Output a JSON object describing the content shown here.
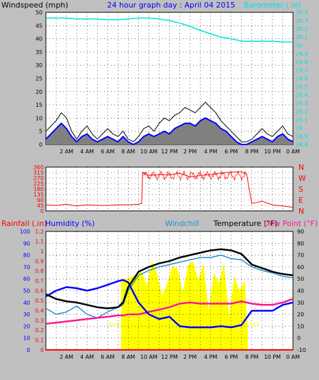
{
  "colors": {
    "bg": "#c0c0c0",
    "plot_bg": "#ffffff",
    "grid": "#000000",
    "wind_gust": "#000000",
    "wind_avg": "#0000ff",
    "wind_fill": "#808080",
    "barometer": "#00e0e0",
    "direction": "#ff0000",
    "humidity": "#0000ff",
    "windchill": "#2090d0",
    "temperature": "#000000",
    "dewpoint": "#ff1493",
    "rainfall": "#ff0000",
    "solar": "#ffff00",
    "sun_label": "#ffff00"
  },
  "chart_data": [
    {
      "type": "line",
      "title": "24 hour graph day : April 04 2015",
      "left_label": "Windspeed (mph)",
      "right_label": "Barometer (.in)",
      "x_ticks": [
        "2 AM",
        "4 AM",
        "6 AM",
        "8 AM",
        "10 AM",
        "12 PM",
        "2 PM",
        "4 PM",
        "6 PM",
        "8 PM",
        "10 PM",
        "0 AM"
      ],
      "x_range_hours": [
        0,
        24
      ],
      "grid": true,
      "y_left": {
        "range": [
          0,
          50
        ],
        "ticks": [
          "0",
          "5",
          "10",
          "15",
          "20",
          "25",
          "30",
          "35",
          "40",
          "45",
          "50"
        ]
      },
      "y_right": {
        "range": [
          28.8,
          30.4
        ],
        "ticks": [
          "28.8",
          "28.9",
          "29",
          "29.1",
          "29.2",
          "29.3",
          "29.4",
          "29.5",
          "29.6",
          "29.7",
          "29.8",
          "29.9",
          "30",
          "30.1",
          "30.2",
          "30.3",
          "30.4"
        ]
      },
      "series": [
        {
          "name": "Barometer",
          "axis": "right",
          "x": [
            0,
            1,
            2,
            3,
            4,
            5,
            6,
            7,
            8,
            9,
            10,
            11,
            12,
            13,
            14,
            15,
            16,
            17,
            18,
            19,
            20,
            21,
            22,
            23,
            24
          ],
          "y": [
            30.33,
            30.33,
            30.33,
            30.32,
            30.32,
            30.32,
            30.31,
            30.31,
            30.32,
            30.33,
            30.33,
            30.32,
            30.3,
            30.27,
            30.23,
            30.18,
            30.14,
            30.1,
            30.08,
            30.05,
            30.05,
            30.05,
            30.05,
            30.04,
            30.04
          ]
        },
        {
          "name": "Wind gust",
          "axis": "left",
          "x": [
            0,
            0.5,
            1,
            1.5,
            2,
            2.5,
            3,
            3.5,
            4,
            4.5,
            5,
            5.5,
            6,
            6.5,
            7,
            7.5,
            8,
            8.5,
            9,
            9.5,
            10,
            10.5,
            11,
            11.5,
            12,
            12.5,
            13,
            13.5,
            14,
            14.5,
            15,
            15.5,
            16,
            16.5,
            17,
            17.5,
            18,
            18.5,
            19,
            19.5,
            20,
            20.5,
            21,
            21.5,
            22,
            22.5,
            23,
            23.5,
            24
          ],
          "y": [
            5,
            7,
            9,
            12,
            10,
            5,
            2,
            5,
            7,
            4,
            2,
            4,
            6,
            4,
            3,
            5,
            2,
            1,
            3,
            6,
            7,
            5,
            8,
            10,
            9,
            11,
            12,
            14,
            13,
            12,
            14,
            16,
            14,
            12,
            9,
            7,
            5,
            3,
            1,
            1,
            2,
            4,
            6,
            4,
            3,
            5,
            7,
            4,
            3
          ]
        },
        {
          "name": "Wind average",
          "axis": "left",
          "x": [
            0,
            0.5,
            1,
            1.5,
            2,
            2.5,
            3,
            3.5,
            4,
            4.5,
            5,
            5.5,
            6,
            6.5,
            7,
            7.5,
            8,
            8.5,
            9,
            9.5,
            10,
            10.5,
            11,
            11.5,
            12,
            12.5,
            13,
            13.5,
            14,
            14.5,
            15,
            15.5,
            16,
            16.5,
            17,
            17.5,
            18,
            18.5,
            19,
            19.5,
            20,
            20.5,
            21,
            21.5,
            22,
            22.5,
            23,
            23.5,
            24
          ],
          "y": [
            2,
            4,
            6,
            8,
            6,
            3,
            1,
            3,
            4,
            2,
            1,
            2,
            3,
            2,
            1,
            3,
            1,
            0,
            1,
            3,
            4,
            3,
            4,
            5,
            4,
            6,
            7,
            8,
            8,
            7,
            9,
            10,
            9,
            8,
            6,
            5,
            3,
            1,
            0,
            0,
            1,
            2,
            3,
            2,
            1,
            3,
            4,
            2,
            1
          ]
        }
      ]
    },
    {
      "type": "line",
      "y_left": {
        "range": [
          0,
          360
        ],
        "ticks": [
          "0",
          "45",
          "90",
          "135",
          "180",
          "225",
          "270",
          "315",
          "360"
        ]
      },
      "right_labels": [
        "N",
        "W",
        "S",
        "E",
        "N"
      ],
      "x_range_hours": [
        0,
        24
      ],
      "grid": true,
      "series": [
        {
          "name": "Wind direction",
          "x": [
            0,
            1,
            2,
            3,
            4,
            5,
            6,
            7,
            8,
            9,
            9.3,
            9.4,
            9.6,
            10,
            11,
            12,
            13,
            14,
            15,
            16,
            17,
            18,
            19,
            19.5,
            20,
            21,
            22,
            23,
            24
          ],
          "y": [
            50,
            45,
            55,
            40,
            50,
            45,
            45,
            50,
            50,
            55,
            60,
            320,
            300,
            290,
            300,
            295,
            310,
            280,
            290,
            300,
            310,
            320,
            320,
            300,
            60,
            80,
            50,
            40,
            30
          ]
        }
      ]
    },
    {
      "type": "line",
      "labels": {
        "rainfall": "Rainfall (.in)",
        "humidity": "Humidity (%)",
        "windchill": "Windchill",
        "temperature": "Temperature (°F)",
        "dewpoint": "Dew Point (°F)"
      },
      "sun_labels": {
        "rise": "Sun",
        "set": "Set"
      },
      "sun_hours": {
        "rise": 7.3,
        "set": 19.6
      },
      "x_ticks": [
        "2 AM",
        "4 AM",
        "6 AM",
        "8 AM",
        "10 AM",
        "12 PM",
        "2 PM",
        "4 PM",
        "6 PM",
        "8 PM",
        "10 PM",
        "0 AM"
      ],
      "x_range_hours": [
        0,
        24
      ],
      "grid": true,
      "y_humidity": {
        "range": [
          0,
          100
        ],
        "ticks": [
          "0",
          "10",
          "20",
          "30",
          "40",
          "50",
          "60",
          "70",
          "80",
          "90",
          "100"
        ]
      },
      "y_rain": {
        "range": [
          0,
          1.2
        ],
        "ticks": [
          "0",
          "0.1",
          "0.2",
          "0.3",
          "0.4",
          "0.5",
          "0.6",
          "0.7",
          "0.8",
          "0.9",
          "1",
          "1.1",
          "1.2"
        ]
      },
      "y_temp": {
        "range": [
          -10,
          90
        ],
        "ticks": [
          "-10",
          "0",
          "10",
          "20",
          "30",
          "40",
          "50",
          "60",
          "70",
          "80",
          "90"
        ]
      },
      "series": [
        {
          "name": "Humidity",
          "x": [
            0,
            1,
            2,
            3,
            4,
            5,
            6,
            7,
            7.5,
            8,
            9,
            10,
            11,
            12,
            13,
            14,
            15,
            16,
            17,
            18,
            19,
            20,
            21,
            22,
            23,
            24
          ],
          "y": [
            45,
            50,
            53,
            52,
            50,
            52,
            55,
            58,
            59,
            57,
            40,
            30,
            26,
            28,
            20,
            19,
            19,
            19,
            20,
            19,
            21,
            33,
            33,
            33,
            38,
            40
          ]
        },
        {
          "name": "Windchill",
          "x": [
            0,
            1,
            2,
            3,
            4,
            5,
            6,
            7,
            7.5,
            8,
            9,
            10,
            11,
            12,
            13,
            14,
            15,
            16,
            17,
            18,
            19,
            20,
            21,
            22,
            23,
            24
          ],
          "y": [
            25,
            20,
            22,
            27,
            20,
            17,
            22,
            26,
            28,
            40,
            53,
            57,
            60,
            62,
            64,
            66,
            68,
            68,
            70,
            67,
            66,
            60,
            57,
            55,
            52,
            51
          ]
        },
        {
          "name": "Temperature",
          "x": [
            0,
            1,
            2,
            3,
            4,
            5,
            6,
            7,
            7.5,
            8,
            9,
            10,
            11,
            12,
            13,
            14,
            15,
            16,
            17,
            18,
            19,
            20,
            21,
            22,
            23,
            24
          ],
          "y": [
            37,
            33,
            31,
            30,
            28,
            26,
            25,
            26,
            30,
            43,
            56,
            60,
            63,
            65,
            68,
            70,
            72,
            74,
            75,
            74,
            71,
            62,
            59,
            56,
            54,
            53
          ]
        },
        {
          "name": "Dew Point",
          "x": [
            0,
            1,
            2,
            3,
            4,
            5,
            6,
            7,
            7.5,
            8,
            9,
            10,
            11,
            12,
            13,
            14,
            15,
            16,
            17,
            18,
            19,
            20,
            21,
            22,
            23,
            24
          ],
          "y": [
            12,
            13,
            14,
            15,
            16,
            17,
            18,
            19,
            19,
            20,
            20,
            22,
            24,
            26,
            29,
            30,
            29,
            29,
            29,
            29,
            31,
            29,
            28,
            28,
            30,
            33
          ]
        },
        {
          "name": "Solar",
          "x": [
            7.3,
            7.8,
            8.3,
            8.8,
            9.3,
            9.8,
            10.3,
            10.8,
            11.3,
            11.8,
            12.3,
            12.8,
            13.3,
            13.8,
            14.3,
            14.8,
            15.3,
            15.8,
            16.3,
            16.8,
            17.3,
            17.8,
            18.3,
            18.8,
            19.3,
            19.6
          ],
          "y": [
            0.7,
            0.72,
            0.74,
            0.76,
            0.8,
            0.65,
            0.9,
            0.78,
            0.55,
            0.68,
            0.85,
            0.82,
            0.58,
            0.86,
            0.9,
            0.7,
            0.88,
            0.4,
            0.78,
            0.68,
            0.88,
            0.35,
            0.75,
            0.6,
            0.7,
            0.2
          ]
        },
        {
          "name": "Rainfall",
          "x": [
            0,
            24
          ],
          "y": [
            0,
            0
          ]
        }
      ]
    }
  ]
}
